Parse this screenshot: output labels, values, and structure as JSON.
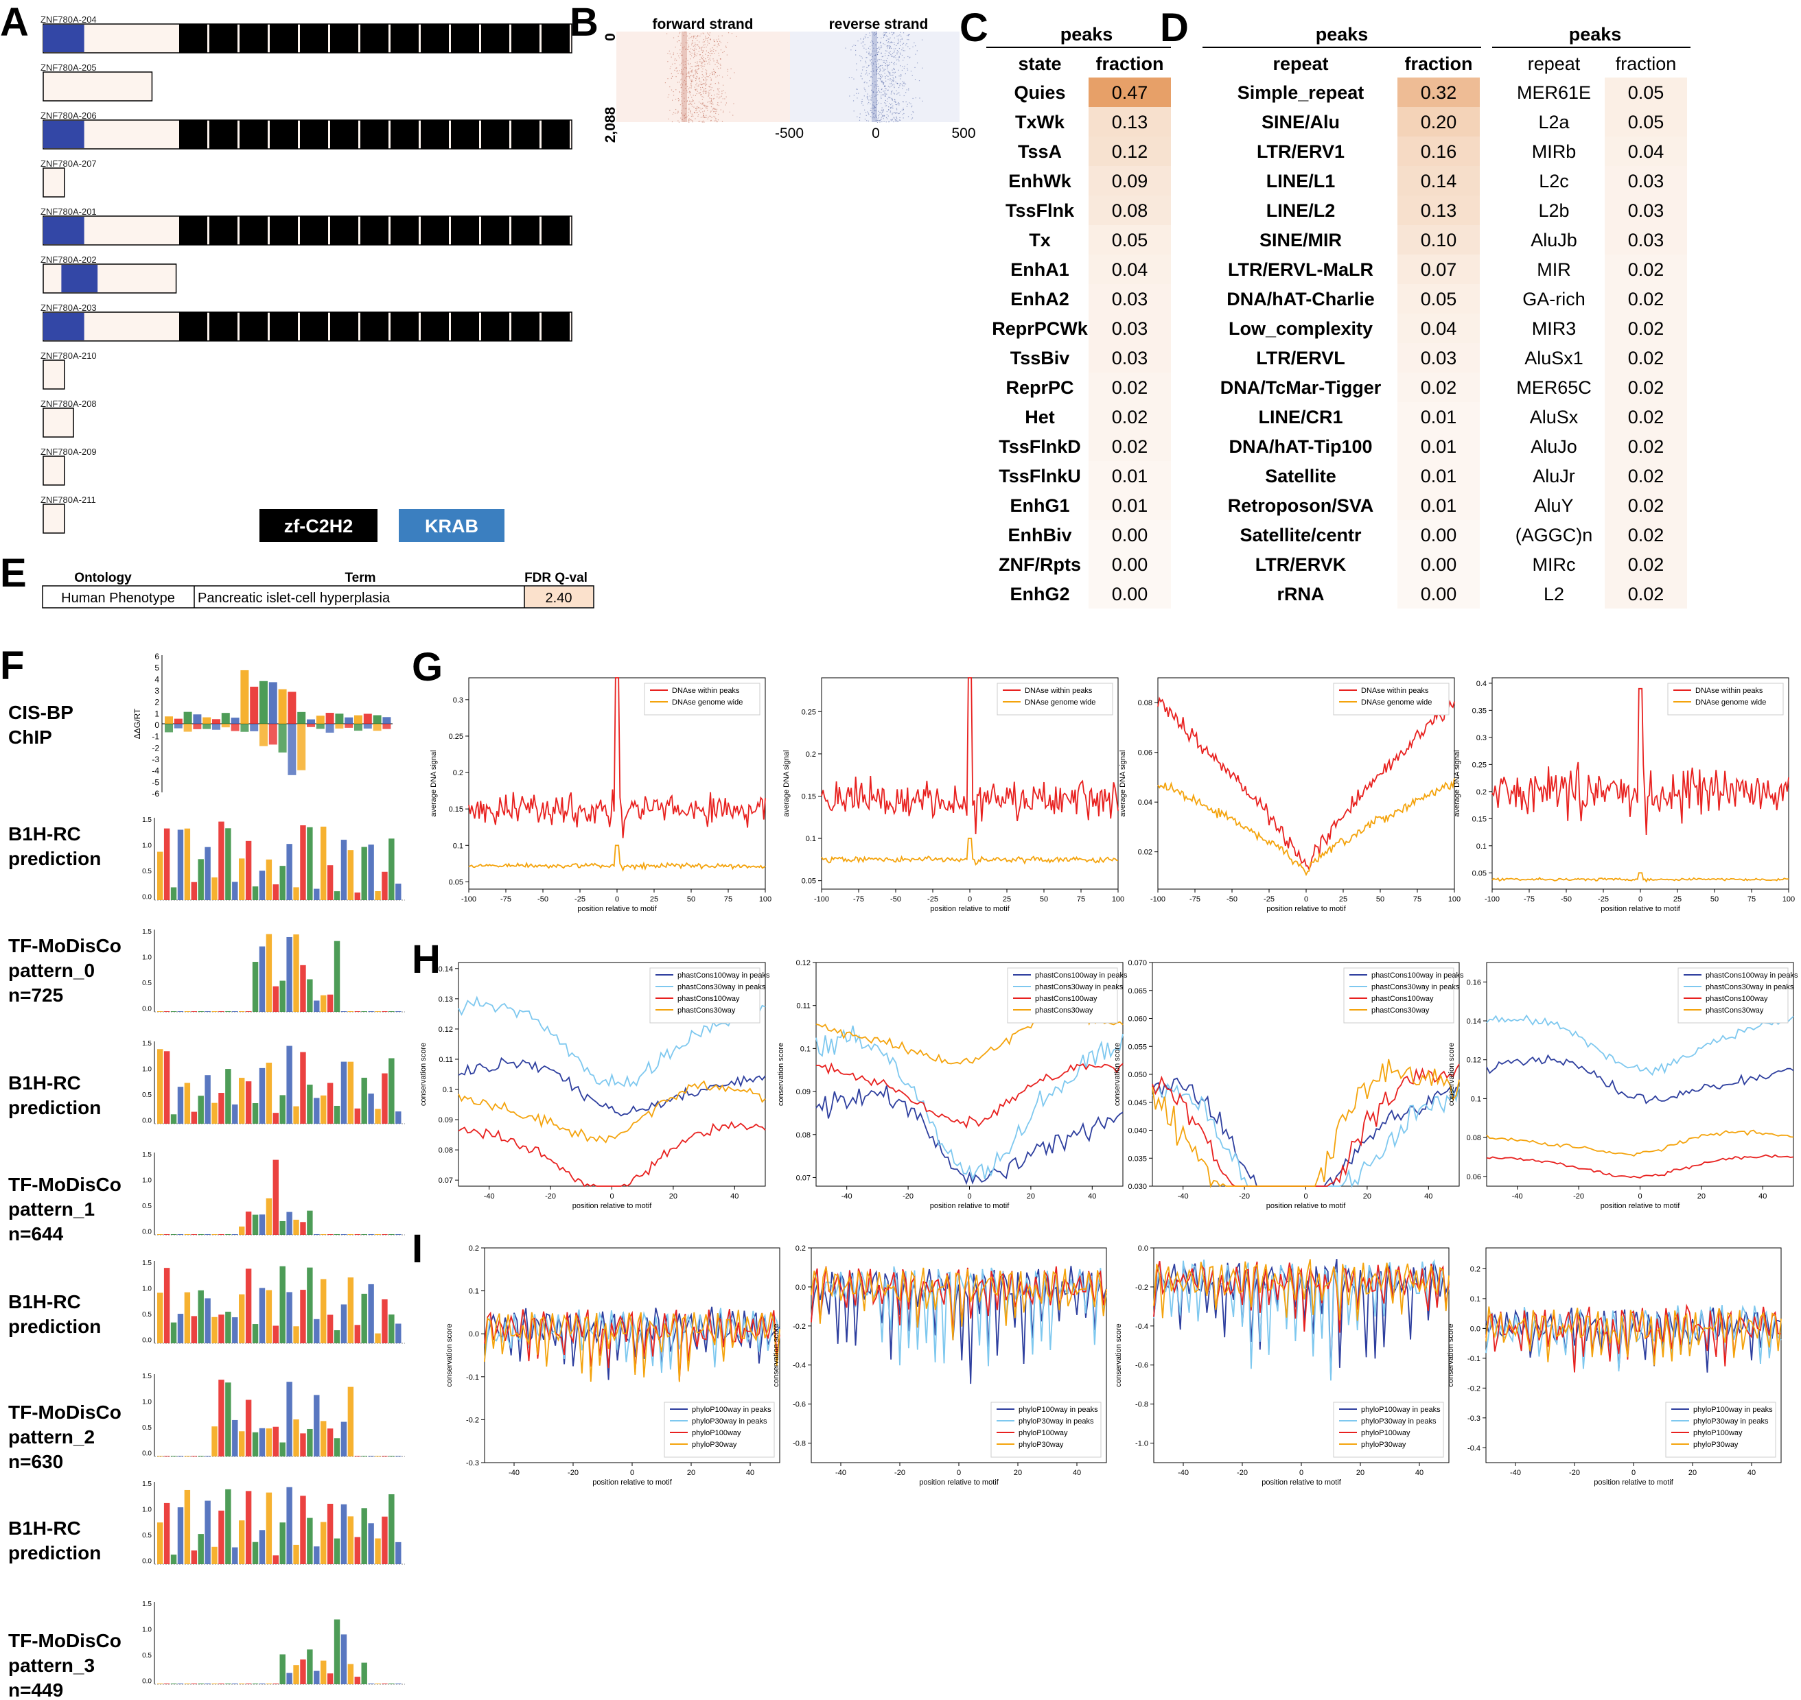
{
  "panel_letters": {
    "A": "A",
    "B": "B",
    "C": "C",
    "D": "D",
    "E": "E",
    "F": "F",
    "G": "G",
    "H": "H",
    "I": "I"
  },
  "panelA": {
    "transcripts": [
      {
        "label": "ZNF780A-204",
        "len": 0.6944,
        "krab": [
          0.0,
          0.0538
        ],
        "znf": true
      },
      {
        "label": "ZNF780A-205",
        "len": 0.1429,
        "krab": null,
        "znf": false
      },
      {
        "label": "ZNF780A-206",
        "len": 0.6944,
        "krab": [
          0.0,
          0.0538
        ],
        "znf": true
      },
      {
        "label": "ZNF780A-207",
        "len": 0.0278,
        "krab": null,
        "znf": false
      },
      {
        "label": "ZNF780A-201",
        "len": 0.6944,
        "krab": [
          0.0,
          0.0538
        ],
        "znf": true
      },
      {
        "label": "ZNF780A-202",
        "len": 0.1746,
        "krab": [
          0.0238,
          0.0714
        ],
        "znf": false
      },
      {
        "label": "ZNF780A-203",
        "len": 0.6944,
        "krab": [
          0.0,
          0.0538
        ],
        "znf": true
      },
      {
        "label": "ZNF780A-210",
        "len": 0.0278,
        "krab": null,
        "znf": false
      },
      {
        "label": "ZNF780A-208",
        "len": 0.0397,
        "krab": null,
        "znf": false
      },
      {
        "label": "ZNF780A-209",
        "len": 0.0278,
        "krab": null,
        "znf": false
      },
      {
        "label": "ZNF780A-211",
        "len": 0.0278,
        "krab": null,
        "znf": false
      }
    ],
    "znf_count": 13,
    "legend": {
      "zf": "zf-C2H2",
      "krab": "KRAB"
    },
    "colors": {
      "krab": "#3347a6",
      "znf": "#000000",
      "body": "#fdf4ee",
      "legend_krab": "#3b7fc0"
    }
  },
  "panelB": {
    "titles": [
      "forward strand",
      "reverse strand"
    ],
    "y_ticks": [
      "0",
      "2,088"
    ],
    "x_ticks": [
      "-500",
      "0",
      "500"
    ],
    "colors": {
      "forward": "#b4503a",
      "reverse": "#3a4f9a"
    }
  },
  "panelC": {
    "header": "peaks",
    "col1": "state",
    "col2": "fraction",
    "rows": [
      [
        "Quies",
        "0.47"
      ],
      [
        "TxWk",
        "0.13"
      ],
      [
        "TssA",
        "0.12"
      ],
      [
        "EnhWk",
        "0.09"
      ],
      [
        "TssFlnk",
        "0.08"
      ],
      [
        "Tx",
        "0.05"
      ],
      [
        "EnhA1",
        "0.04"
      ],
      [
        "EnhA2",
        "0.03"
      ],
      [
        "ReprPCWk",
        "0.03"
      ],
      [
        "TssBiv",
        "0.03"
      ],
      [
        "ReprPC",
        "0.02"
      ],
      [
        "Het",
        "0.02"
      ],
      [
        "TssFlnkD",
        "0.02"
      ],
      [
        "TssFlnkU",
        "0.01"
      ],
      [
        "EnhG1",
        "0.01"
      ],
      [
        "EnhBiv",
        "0.00"
      ],
      [
        "ZNF/Rpts",
        "0.00"
      ],
      [
        "EnhG2",
        "0.00"
      ]
    ]
  },
  "panelD": {
    "header": "peaks",
    "col1": "repeat",
    "col2": "fraction",
    "rows": [
      [
        "Simple_repeat",
        "0.32"
      ],
      [
        "SINE/Alu",
        "0.20"
      ],
      [
        "LTR/ERV1",
        "0.16"
      ],
      [
        "LINE/L1",
        "0.14"
      ],
      [
        "LINE/L2",
        "0.13"
      ],
      [
        "SINE/MIR",
        "0.10"
      ],
      [
        "LTR/ERVL-MaLR",
        "0.07"
      ],
      [
        "DNA/hAT-Charlie",
        "0.05"
      ],
      [
        "Low_complexity",
        "0.04"
      ],
      [
        "LTR/ERVL",
        "0.03"
      ],
      [
        "DNA/TcMar-Tigger",
        "0.02"
      ],
      [
        "LINE/CR1",
        "0.01"
      ],
      [
        "DNA/hAT-Tip100",
        "0.01"
      ],
      [
        "Satellite",
        "0.01"
      ],
      [
        "Retroposon/SVA",
        "0.01"
      ],
      [
        "Satellite/centr",
        "0.00"
      ],
      [
        "LTR/ERVK",
        "0.00"
      ],
      [
        "rRNA",
        "0.00"
      ]
    ]
  },
  "panelD2": {
    "header": "peaks",
    "col1": "repeat",
    "col2": "fraction",
    "rows": [
      [
        "MER61E",
        "0.05"
      ],
      [
        "L2a",
        "0.05"
      ],
      [
        "MIRb",
        "0.04"
      ],
      [
        "L2c",
        "0.03"
      ],
      [
        "L2b",
        "0.03"
      ],
      [
        "AluJb",
        "0.03"
      ],
      [
        "MIR",
        "0.02"
      ],
      [
        "GA-rich",
        "0.02"
      ],
      [
        "MIR3",
        "0.02"
      ],
      [
        "AluSx1",
        "0.02"
      ],
      [
        "MER65C",
        "0.02"
      ],
      [
        "AluSx",
        "0.02"
      ],
      [
        "AluJo",
        "0.02"
      ],
      [
        "AluJr",
        "0.02"
      ],
      [
        "AluY",
        "0.02"
      ],
      [
        "(AGGC)n",
        "0.02"
      ],
      [
        "MIRc",
        "0.02"
      ],
      [
        "L2",
        "0.02"
      ]
    ]
  },
  "panelE": {
    "headers": [
      "Ontology",
      "Term",
      "FDR Q-val"
    ],
    "row": [
      "Human Phenotype",
      "Pancreatic islet-cell hyperplasia",
      "2.40"
    ]
  },
  "panelF": {
    "labels": [
      [
        "CIS-BP",
        "ChIP"
      ],
      [
        "B1H-RC",
        "prediction"
      ],
      [
        "TF-MoDisCo",
        "pattern_0",
        "n=725"
      ],
      [
        "B1H-RC",
        "prediction"
      ],
      [
        "TF-MoDisCo",
        "pattern_1",
        "n=644"
      ],
      [
        "B1H-RC",
        "prediction"
      ],
      [
        "TF-MoDisCo",
        "pattern_2",
        "n=630"
      ],
      [
        "B1H-RC",
        "prediction"
      ],
      [
        "TF-MoDisCo",
        "pattern_3",
        "n=449"
      ]
    ],
    "cisbp_ylabel": "ΔΔG/RT",
    "cisbp_yticks": [
      "6",
      "5",
      "4",
      "3",
      "2",
      "1",
      "0",
      "-1",
      "-2",
      "-3",
      "-4",
      "-5",
      "-6"
    ],
    "logo_yticks": [
      "1.5",
      "1.0",
      "0.5",
      "0.0"
    ]
  },
  "chart_data": [
    {
      "type": "line",
      "id": "G1",
      "xlabel": "position relative to motif",
      "ylabel": "average DNA signal",
      "xlim": [
        -100,
        100
      ],
      "ylim": [
        0.04,
        0.33
      ],
      "xticks": [
        -100,
        -75,
        -50,
        -25,
        0,
        25,
        50,
        75,
        100
      ],
      "yticks": [
        0.05,
        0.1,
        0.15,
        0.2,
        0.25,
        0.3
      ],
      "series": [
        {
          "name": "DNAse within peaks",
          "color": "#e8211f",
          "base": 0.15,
          "amp": 0.02,
          "peak": 0.33
        },
        {
          "name": "DNAse genome wide",
          "color": "#f4a30c",
          "base": 0.072,
          "amp": 0.003,
          "peak": 0.1
        }
      ]
    },
    {
      "type": "line",
      "id": "G2",
      "xlabel": "position relative to motif",
      "ylabel": "average DNA signal",
      "xlim": [
        -100,
        100
      ],
      "ylim": [
        0.04,
        0.29
      ],
      "xticks": [
        -100,
        -75,
        -50,
        -25,
        0,
        25,
        50,
        75,
        100
      ],
      "yticks": [
        0.05,
        0.1,
        0.15,
        0.2,
        0.25
      ],
      "series": [
        {
          "name": "DNAse within peaks",
          "color": "#e8211f",
          "base": 0.145,
          "amp": 0.02,
          "peak": 0.29
        },
        {
          "name": "DNAse genome wide",
          "color": "#f4a30c",
          "base": 0.075,
          "amp": 0.003,
          "peak": 0.1
        }
      ]
    },
    {
      "type": "line",
      "id": "G3",
      "xlabel": "position relative to motif",
      "ylabel": "average DNA signal",
      "xlim": [
        -100,
        100
      ],
      "ylim": [
        0.005,
        0.09
      ],
      "xticks": [
        -100,
        -75,
        -50,
        -25,
        0,
        25,
        50,
        75,
        100
      ],
      "yticks": [
        0.02,
        0.04,
        0.06,
        0.08
      ],
      "series": [
        {
          "name": "DNAse within peaks",
          "color": "#e8211f",
          "shape": "valley",
          "edge": 0.08,
          "mid": 0.012
        },
        {
          "name": "DNAse genome wide",
          "color": "#f4a30c",
          "shape": "valley",
          "edge": 0.048,
          "mid": 0.012
        }
      ]
    },
    {
      "type": "line",
      "id": "G4",
      "xlabel": "position relative to motif",
      "ylabel": "average DNA signal",
      "xlim": [
        -100,
        100
      ],
      "ylim": [
        0.02,
        0.41
      ],
      "xticks": [
        -100,
        -75,
        -50,
        -25,
        0,
        25,
        50,
        75,
        100
      ],
      "yticks": [
        0.05,
        0.1,
        0.15,
        0.2,
        0.25,
        0.3,
        0.35,
        0.4
      ],
      "series": [
        {
          "name": "DNAse within peaks",
          "color": "#e8211f",
          "base": 0.2,
          "amp": 0.04,
          "peak": 0.39
        },
        {
          "name": "DNAse genome wide",
          "color": "#f4a30c",
          "base": 0.038,
          "amp": 0.002,
          "peak": 0.05
        }
      ]
    },
    {
      "type": "line",
      "id": "H1",
      "xlabel": "position relative to motif",
      "ylabel": "conservation score",
      "xlim": [
        -50,
        50
      ],
      "ylim": [
        0.068,
        0.142
      ],
      "xticks": [
        -40,
        -20,
        0,
        20,
        40
      ],
      "yticks": [
        0.07,
        0.08,
        0.09,
        0.1,
        0.11,
        0.12,
        0.13,
        0.14
      ],
      "series": [
        {
          "name": "phastCons100way in peaks",
          "color": "#2d3e9e",
          "base": 0.105,
          "amp": 0.008
        },
        {
          "name": "phastCons30way in peaks",
          "color": "#7ec8ef",
          "base": 0.122,
          "amp": 0.01
        },
        {
          "name": "phastCons100way",
          "color": "#e8211f",
          "base": 0.083,
          "amp": 0.008
        },
        {
          "name": "phastCons30way",
          "color": "#f4a30c",
          "base": 0.097,
          "amp": 0.008
        }
      ]
    },
    {
      "type": "line",
      "id": "H2",
      "xlabel": "position relative to motif",
      "ylabel": "conservation score",
      "xlim": [
        -50,
        50
      ],
      "ylim": [
        0.068,
        0.12
      ],
      "xticks": [
        -40,
        -20,
        0,
        20,
        40
      ],
      "yticks": [
        0.07,
        0.08,
        0.09,
        0.1,
        0.11,
        0.12
      ],
      "series": [
        {
          "name": "phastCons100way in peaks",
          "color": "#2d3e9e",
          "base": 0.085,
          "amp": 0.01
        },
        {
          "name": "phastCons30way in peaks",
          "color": "#7ec8ef",
          "base": 0.095,
          "amp": 0.012
        },
        {
          "name": "phastCons100way",
          "color": "#e8211f",
          "base": 0.093,
          "amp": 0.005
        },
        {
          "name": "phastCons30way",
          "color": "#f4a30c",
          "base": 0.105,
          "amp": 0.005
        }
      ]
    },
    {
      "type": "line",
      "id": "H3",
      "xlabel": "position relative to motif",
      "ylabel": "conservation score",
      "xlim": [
        -50,
        50
      ],
      "ylim": [
        0.03,
        0.07
      ],
      "xticks": [
        -40,
        -20,
        0,
        20,
        40
      ],
      "yticks": [
        0.03,
        0.035,
        0.04,
        0.045,
        0.05,
        0.055,
        0.06,
        0.065,
        0.07
      ],
      "series": [
        {
          "name": "phastCons100way in peaks",
          "color": "#2d3e9e",
          "base": 0.048,
          "amp": 0.008
        },
        {
          "name": "phastCons30way in peaks",
          "color": "#7ec8ef",
          "base": 0.042,
          "amp": 0.01
        },
        {
          "name": "phastCons100way",
          "color": "#e8211f",
          "base": 0.044,
          "amp": 0.01
        },
        {
          "name": "phastCons30way",
          "color": "#f4a30c",
          "base": 0.045,
          "amp": 0.012
        }
      ]
    },
    {
      "type": "line",
      "id": "H4",
      "xlabel": "position relative to motif",
      "ylabel": "conservation score",
      "xlim": [
        -50,
        50
      ],
      "ylim": [
        0.055,
        0.17
      ],
      "xticks": [
        -40,
        -20,
        0,
        20,
        40
      ],
      "yticks": [
        0.06,
        0.08,
        0.1,
        0.12,
        0.14,
        0.16
      ],
      "series": [
        {
          "name": "phastCons100way in peaks",
          "color": "#2d3e9e",
          "base": 0.115,
          "amp": 0.01
        },
        {
          "name": "phastCons30way in peaks",
          "color": "#7ec8ef",
          "base": 0.135,
          "amp": 0.01
        },
        {
          "name": "phastCons100way",
          "color": "#e8211f",
          "base": 0.068,
          "amp": 0.004
        },
        {
          "name": "phastCons30way",
          "color": "#f4a30c",
          "base": 0.08,
          "amp": 0.005
        }
      ]
    },
    {
      "type": "line",
      "id": "I1",
      "xlabel": "position relative to motif",
      "ylabel": "conservation score",
      "xlim": [
        -50,
        50
      ],
      "ylim": [
        -0.3,
        0.2
      ],
      "xticks": [
        -40,
        -20,
        0,
        20,
        40
      ],
      "yticks": [
        -0.3,
        -0.2,
        -0.1,
        0.0,
        0.1,
        0.2
      ],
      "series": [
        {
          "name": "phyloP100way in peaks",
          "color": "#2d3e9e"
        },
        {
          "name": "phyloP30way in peaks",
          "color": "#7ec8ef"
        },
        {
          "name": "phyloP100way",
          "color": "#e8211f"
        },
        {
          "name": "phyloP30way",
          "color": "#f4a30c"
        }
      ]
    },
    {
      "type": "line",
      "id": "I2",
      "xlabel": "position relative to motif",
      "ylabel": "conservation score",
      "xlim": [
        -50,
        50
      ],
      "ylim": [
        -0.9,
        0.2
      ],
      "xticks": [
        -40,
        -20,
        0,
        20,
        40
      ],
      "yticks": [
        -0.8,
        -0.6,
        -0.4,
        -0.2,
        0.0,
        0.2
      ],
      "series": [
        {
          "name": "phyloP100way in peaks",
          "color": "#2d3e9e"
        },
        {
          "name": "phyloP30way in peaks",
          "color": "#7ec8ef"
        },
        {
          "name": "phyloP100way",
          "color": "#e8211f"
        },
        {
          "name": "phyloP30way",
          "color": "#f4a30c"
        }
      ]
    },
    {
      "type": "line",
      "id": "I3",
      "xlabel": "position relative to motif",
      "ylabel": "conservation score",
      "xlim": [
        -50,
        50
      ],
      "ylim": [
        -1.1,
        0.0
      ],
      "xticks": [
        -40,
        -20,
        0,
        20,
        40
      ],
      "yticks": [
        -1.0,
        -0.8,
        -0.6,
        -0.4,
        -0.2,
        0.0
      ],
      "series": [
        {
          "name": "phyloP100way in peaks",
          "color": "#2d3e9e"
        },
        {
          "name": "phyloP30way in peaks",
          "color": "#7ec8ef"
        },
        {
          "name": "phyloP100way",
          "color": "#e8211f"
        },
        {
          "name": "phyloP30way",
          "color": "#f4a30c"
        }
      ]
    },
    {
      "type": "line",
      "id": "I4",
      "xlabel": "position relative to motif",
      "ylabel": "conservation score",
      "xlim": [
        -50,
        50
      ],
      "ylim": [
        -0.45,
        0.27
      ],
      "xticks": [
        -40,
        -20,
        0,
        20,
        40
      ],
      "yticks": [
        -0.4,
        -0.3,
        -0.2,
        -0.1,
        0.0,
        0.1,
        0.2
      ],
      "series": [
        {
          "name": "phyloP100way in peaks",
          "color": "#2d3e9e"
        },
        {
          "name": "phyloP30way in peaks",
          "color": "#7ec8ef"
        },
        {
          "name": "phyloP100way",
          "color": "#e8211f"
        },
        {
          "name": "phyloP30way",
          "color": "#f4a30c"
        }
      ]
    }
  ]
}
